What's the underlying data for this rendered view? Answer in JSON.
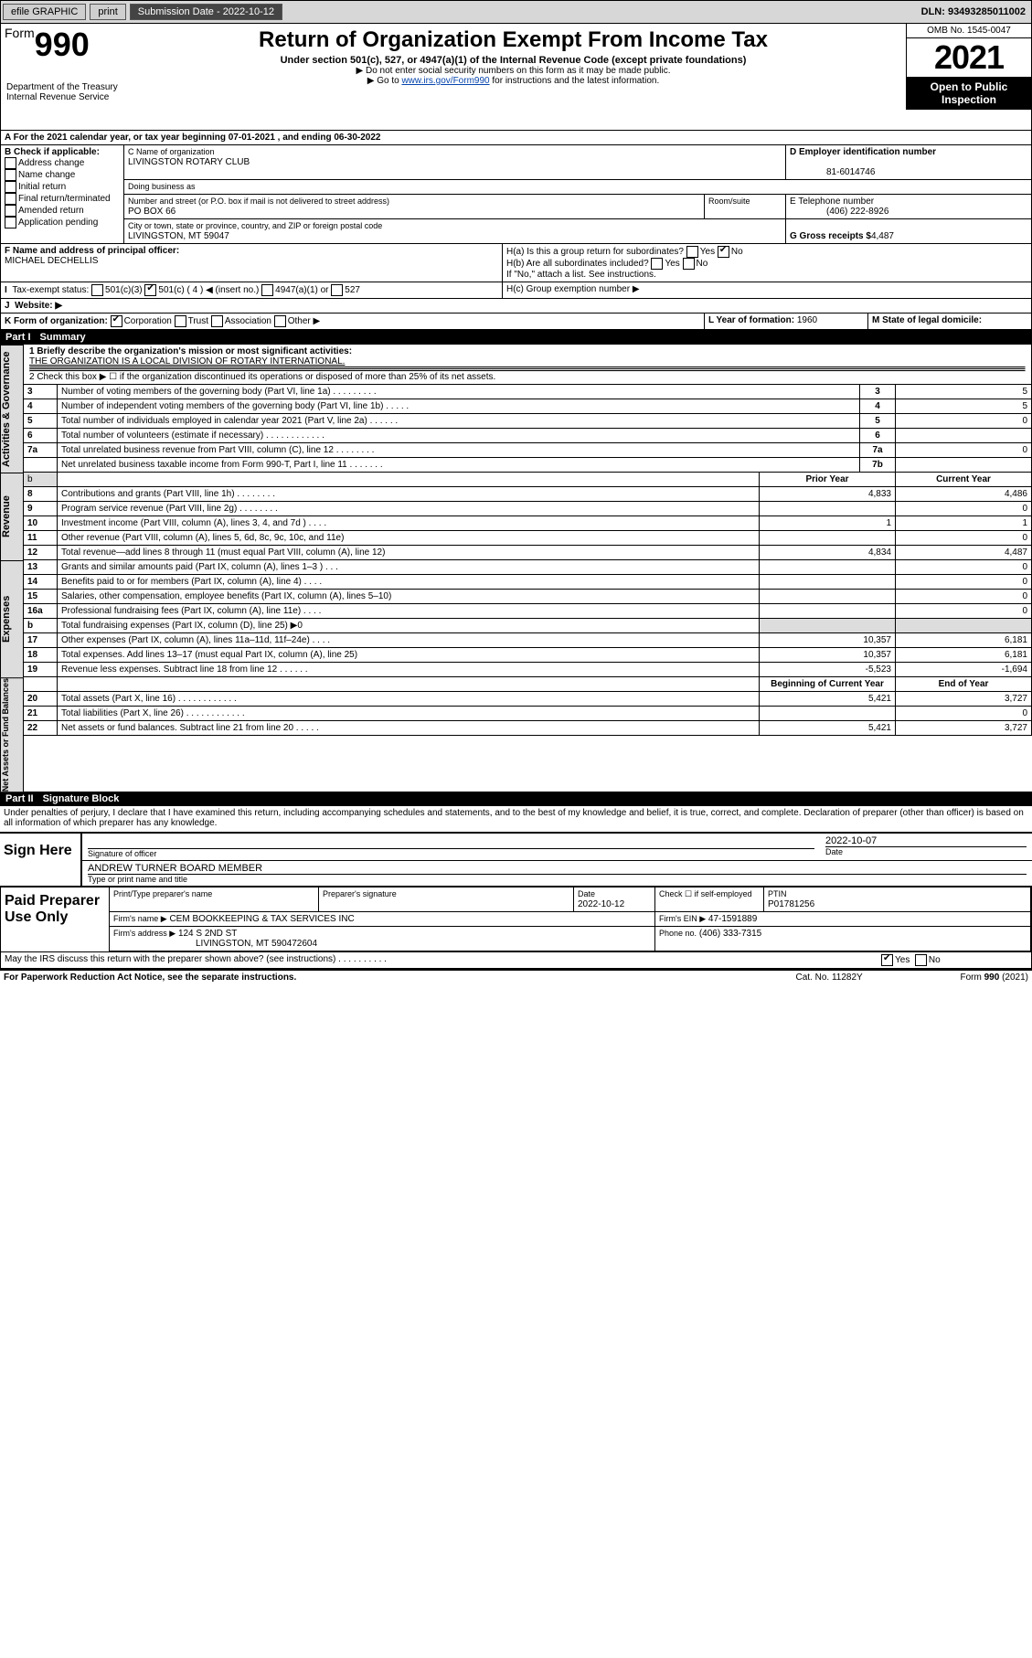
{
  "topbar": {
    "efile": "efile GRAPHIC",
    "print": "print",
    "subLabel": "Submission Date - 2022-10-12",
    "dln": "DLN: 93493285011002"
  },
  "header": {
    "formNo": "990",
    "formWord": "Form",
    "title": "Return of Organization Exempt From Income Tax",
    "sub1": "Under section 501(c), 527, or 4947(a)(1) of the Internal Revenue Code (except private foundations)",
    "sub2": "▶ Do not enter social security numbers on this form as it may be made public.",
    "sub3_pre": "▶ Go to ",
    "sub3_link": "www.irs.gov/Form990",
    "sub3_post": " for instructions and the latest information.",
    "dept": "Department of the Treasury\nInternal Revenue Service",
    "omb": "OMB No. 1545-0047",
    "year": "2021",
    "open": "Open to Public Inspection"
  },
  "period": {
    "label_a": "A For the 2021 calendar year, or tax year beginning ",
    "begin": "07-01-2021",
    "label_mid": " , and ending ",
    "end": "06-30-2022"
  },
  "boxB": {
    "title": "B Check if applicable:",
    "opts": [
      "Address change",
      "Name change",
      "Initial return",
      "Final return/terminated",
      "Amended return",
      "Application pending"
    ]
  },
  "boxC": {
    "label": "C Name of organization",
    "name": "LIVINGSTON ROTARY CLUB",
    "dba_label": "Doing business as",
    "addr_label": "Number and street (or P.O. box if mail is not delivered to street address)",
    "room_label": "Room/suite",
    "addr": "PO BOX 66",
    "city_label": "City or town, state or province, country, and ZIP or foreign postal code",
    "city": "LIVINGSTON, MT  59047"
  },
  "boxD": {
    "label": "D Employer identification number",
    "ein": "81-6014746"
  },
  "boxE": {
    "label": "E Telephone number",
    "val": "(406) 222-8926"
  },
  "boxG": {
    "label": "G Gross receipts $",
    "val": "4,487"
  },
  "boxF": {
    "label": "F Name and address of principal officer:",
    "name": "MICHAEL DECHELLIS"
  },
  "boxH": {
    "a": "H(a)  Is this a group return for subordinates?",
    "b": "H(b)  Are all subordinates included?",
    "note": "If \"No,\" attach a list. See instructions.",
    "c": "H(c)  Group exemption number ▶",
    "yes": "Yes",
    "no": "No"
  },
  "boxI": {
    "label": "Tax-exempt status:",
    "o1": "501(c)(3)",
    "o2": "501(c) ( 4 ) ◀ (insert no.)",
    "o3": "4947(a)(1) or",
    "o4": "527"
  },
  "boxJ": {
    "label": "Website: ▶"
  },
  "boxK": {
    "label": "K Form of organization:",
    "o1": "Corporation",
    "o2": "Trust",
    "o3": "Association",
    "o4": "Other ▶"
  },
  "boxL": {
    "label": "L Year of formation:",
    "val": "1960"
  },
  "boxM": {
    "label": "M State of legal domicile:"
  },
  "part1": {
    "num": "Part I",
    "title": "Summary"
  },
  "summary": {
    "l1_label": "1  Briefly describe the organization's mission or most significant activities:",
    "l1_val": "THE ORGANIZATION IS A LOCAL DIVISION OF ROTARY INTERNATIONAL.",
    "l2": "2  Check this box ▶ ☐  if the organization discontinued its operations or disposed of more than 25% of its net assets.",
    "rows_gov": [
      {
        "n": "3",
        "t": "Number of voting members of the governing body (Part VI, line 1a)  .     .     .     .     .     .     .     .     .",
        "box": "3",
        "v": "5"
      },
      {
        "n": "4",
        "t": "Number of independent voting members of the governing body (Part VI, line 1b)   .     .     .     .     .",
        "box": "4",
        "v": "5"
      },
      {
        "n": "5",
        "t": "Total number of individuals employed in calendar year 2021 (Part V, line 2a)   .     .     .     .     .     .",
        "box": "5",
        "v": "0"
      },
      {
        "n": "6",
        "t": "Total number of volunteers (estimate if necessary)   .     .     .     .     .     .     .     .     .     .     .     .",
        "box": "6",
        "v": ""
      },
      {
        "n": "7a",
        "t": "Total unrelated business revenue from Part VIII, column (C), line 12   .     .     .     .     .     .     .     .",
        "box": "7a",
        "v": "0"
      },
      {
        "n": "",
        "t": "Net unrelated business taxable income from Form 990-T, Part I, line 11   .     .     .     .     .     .     .",
        "box": "7b",
        "v": ""
      }
    ],
    "col_prior": "Prior Year",
    "col_curr": "Current Year",
    "rows_rev": [
      {
        "n": "8",
        "t": "Contributions and grants (Part VIII, line 1h)   .     .     .     .     .     .     .     .",
        "p": "4,833",
        "c": "4,486"
      },
      {
        "n": "9",
        "t": "Program service revenue (Part VIII, line 2g)   .     .     .     .     .     .     .     .",
        "p": "",
        "c": "0"
      },
      {
        "n": "10",
        "t": "Investment income (Part VIII, column (A), lines 3, 4, and 7d )   .     .     .     .",
        "p": "1",
        "c": "1"
      },
      {
        "n": "11",
        "t": "Other revenue (Part VIII, column (A), lines 5, 6d, 8c, 9c, 10c, and 11e)",
        "p": "",
        "c": "0"
      },
      {
        "n": "12",
        "t": "Total revenue—add lines 8 through 11 (must equal Part VIII, column (A), line 12)",
        "p": "4,834",
        "c": "4,487"
      }
    ],
    "rows_exp": [
      {
        "n": "13",
        "t": "Grants and similar amounts paid (Part IX, column (A), lines 1–3 )   .     .     .",
        "p": "",
        "c": "0"
      },
      {
        "n": "14",
        "t": "Benefits paid to or for members (Part IX, column (A), line 4)   .     .     .     .",
        "p": "",
        "c": "0"
      },
      {
        "n": "15",
        "t": "Salaries, other compensation, employee benefits (Part IX, column (A), lines 5–10)",
        "p": "",
        "c": "0"
      },
      {
        "n": "16a",
        "t": "Professional fundraising fees (Part IX, column (A), line 11e)   .     .     .     .",
        "p": "",
        "c": "0"
      },
      {
        "n": "b",
        "t": "Total fundraising expenses (Part IX, column (D), line 25) ▶0",
        "p": "shade",
        "c": "shade"
      },
      {
        "n": "17",
        "t": "Other expenses (Part IX, column (A), lines 11a–11d, 11f–24e)   .     .     .     .",
        "p": "10,357",
        "c": "6,181"
      },
      {
        "n": "18",
        "t": "Total expenses. Add lines 13–17 (must equal Part IX, column (A), line 25)",
        "p": "10,357",
        "c": "6,181"
      },
      {
        "n": "19",
        "t": "Revenue less expenses. Subtract line 18 from line 12   .     .     .     .     .     .",
        "p": "-5,523",
        "c": "-1,694"
      }
    ],
    "col_beg": "Beginning of Current Year",
    "col_end": "End of Year",
    "rows_net": [
      {
        "n": "20",
        "t": "Total assets (Part X, line 16)   .     .     .     .     .     .     .     .     .     .     .     .",
        "p": "5,421",
        "c": "3,727"
      },
      {
        "n": "21",
        "t": "Total liabilities (Part X, line 26)   .     .     .     .     .     .     .     .     .     .     .     .",
        "p": "",
        "c": "0"
      },
      {
        "n": "22",
        "t": "Net assets or fund balances. Subtract line 21 from line 20   .     .     .     .     .",
        "p": "5,421",
        "c": "3,727"
      }
    ]
  },
  "sidelabels": {
    "gov": "Activities & Governance",
    "rev": "Revenue",
    "exp": "Expenses",
    "net": "Net Assets or\nFund Balances"
  },
  "part2": {
    "num": "Part II",
    "title": "Signature Block"
  },
  "penalty": "Under penalties of perjury, I declare that I have examined this return, including accompanying schedules and statements, and to the best of my knowledge and belief, it is true, correct, and complete. Declaration of preparer (other than officer) is based on all information of which preparer has any knowledge.",
  "sign": {
    "here": "Sign Here",
    "sig_label": "Signature of officer",
    "date": "2022-10-07",
    "date_label": "Date",
    "name": "ANDREW TURNER  BOARD MEMBER",
    "name_label": "Type or print name and title"
  },
  "paid": {
    "title": "Paid Preparer Use Only",
    "c1": "Print/Type preparer's name",
    "c2": "Preparer's signature",
    "c3": "Date",
    "c3v": "2022-10-12",
    "c4": "Check ☐ if self-employed",
    "c5": "PTIN",
    "c5v": "P01781256",
    "firm_label": "Firm's name   ▶",
    "firm": "CEM BOOKKEEPING & TAX SERVICES INC",
    "ein_label": "Firm's EIN ▶",
    "ein": "47-1591889",
    "addr_label": "Firm's address ▶",
    "addr1": "124 S 2ND ST",
    "addr2": "LIVINGSTON, MT  590472604",
    "phone_label": "Phone no.",
    "phone": "(406) 333-7315"
  },
  "footer": {
    "discuss": "May the IRS discuss this return with the preparer shown above? (see instructions)   .     .     .     .     .     .     .     .     .     .",
    "yes": "Yes",
    "no": "No",
    "paperwork": "For Paperwork Reduction Act Notice, see the separate instructions.",
    "cat": "Cat. No. 11282Y",
    "form": "Form 990 (2021)"
  }
}
